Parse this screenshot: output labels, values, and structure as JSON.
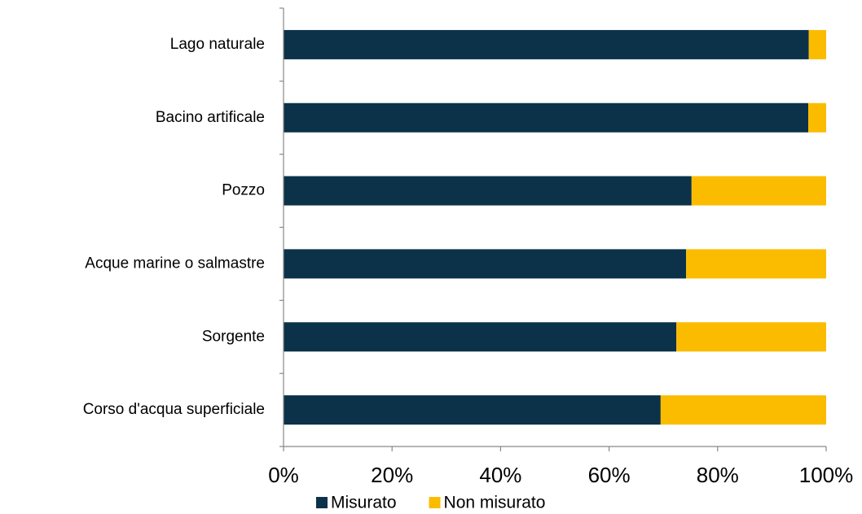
{
  "chart_data": {
    "type": "bar",
    "orientation": "horizontal",
    "stacked": true,
    "categories": [
      "Lago naturale",
      "Bacino artificale",
      "Pozzo",
      "Acque marine o salmastre",
      "Sorgente",
      "Corso d'acqua superficiale"
    ],
    "series": [
      {
        "name": "Misurato",
        "color": "#0b3249",
        "values": [
          96.8,
          96.7,
          75.2,
          74.2,
          72.4,
          69.5
        ]
      },
      {
        "name": "Non misurato",
        "color": "#fbbc00",
        "values": [
          3.2,
          3.3,
          24.8,
          25.8,
          27.6,
          30.5
        ]
      }
    ],
    "xlim": [
      0,
      100
    ],
    "xticks": [
      {
        "value": 0,
        "label": "0%"
      },
      {
        "value": 20,
        "label": "20%"
      },
      {
        "value": 40,
        "label": "40%"
      },
      {
        "value": 60,
        "label": "60%"
      },
      {
        "value": 80,
        "label": "80%"
      },
      {
        "value": 100,
        "label": "100%"
      }
    ],
    "legend": "bottom"
  }
}
